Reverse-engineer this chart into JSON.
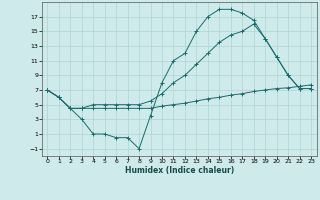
{
  "xlabel": "Humidex (Indice chaleur)",
  "background_color": "#ceeaea",
  "grid_color": "#b0d4d4",
  "line_color": "#1a6b6b",
  "xlim": [
    -0.5,
    23.5
  ],
  "ylim": [
    -2,
    19
  ],
  "xticks": [
    0,
    1,
    2,
    3,
    4,
    5,
    6,
    7,
    8,
    9,
    10,
    11,
    12,
    13,
    14,
    15,
    16,
    17,
    18,
    19,
    20,
    21,
    22,
    23
  ],
  "yticks": [
    -1,
    1,
    3,
    5,
    7,
    9,
    11,
    13,
    15,
    17
  ],
  "line1_x": [
    0,
    1,
    2,
    3,
    4,
    5,
    6,
    7,
    8,
    9,
    10,
    11,
    12,
    13,
    14,
    15,
    16,
    17,
    18,
    19,
    20,
    21,
    22,
    23
  ],
  "line1_y": [
    7,
    6,
    4.5,
    3,
    1,
    1,
    0.5,
    0.5,
    -1,
    3.5,
    8,
    11,
    12,
    15,
    17,
    18,
    18,
    17.5,
    16.5,
    14,
    11.5,
    9,
    7.2,
    7.2
  ],
  "line2_x": [
    0,
    1,
    2,
    3,
    4,
    5,
    6,
    7,
    8,
    9,
    10,
    11,
    12,
    13,
    14,
    15,
    16,
    17,
    18,
    19,
    20,
    21,
    22,
    23
  ],
  "line2_y": [
    7,
    6,
    4.5,
    4.5,
    5,
    5,
    5,
    5,
    5,
    5.5,
    6.5,
    8,
    9,
    10.5,
    12,
    13.5,
    14.5,
    15,
    16,
    14,
    11.5,
    9,
    7.2,
    7.2
  ],
  "line3_x": [
    0,
    1,
    2,
    3,
    4,
    5,
    6,
    7,
    8,
    9,
    10,
    11,
    12,
    13,
    14,
    15,
    16,
    17,
    18,
    19,
    20,
    21,
    22,
    23
  ],
  "line3_y": [
    7,
    6,
    4.5,
    4.5,
    4.5,
    4.5,
    4.5,
    4.5,
    4.5,
    4.5,
    4.8,
    5.0,
    5.2,
    5.5,
    5.8,
    6.0,
    6.3,
    6.5,
    6.8,
    7.0,
    7.2,
    7.3,
    7.5,
    7.7
  ]
}
